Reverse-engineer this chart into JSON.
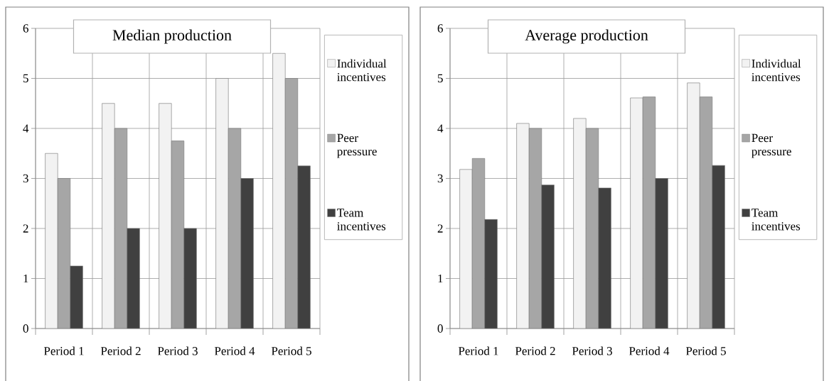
{
  "chart_data": [
    {
      "type": "bar",
      "title": "Median production",
      "categories": [
        "Period 1",
        "Period 2",
        "Period 3",
        "Period 4",
        "Period 5"
      ],
      "series": [
        {
          "name": "Individual incentives",
          "color": "#f2f2f2",
          "values": [
            3.5,
            4.5,
            4.5,
            5,
            5.5
          ]
        },
        {
          "name": "Peer pressure",
          "color": "#a6a6a6",
          "values": [
            3,
            4,
            3.75,
            4,
            5
          ]
        },
        {
          "name": "Team incentives",
          "color": "#404040",
          "values": [
            1.25,
            2,
            2,
            3,
            3.25
          ]
        }
      ],
      "ylim": [
        0,
        6
      ],
      "yticks": [
        0,
        1,
        2,
        3,
        4,
        5,
        6
      ],
      "grid": true,
      "legend": "right"
    },
    {
      "type": "bar",
      "title": "Average production",
      "categories": [
        "Period 1",
        "Period 2",
        "Period 3",
        "Period 4",
        "Period 5"
      ],
      "series": [
        {
          "name": "Individual incentives",
          "color": "#f2f2f2",
          "values": [
            3.18,
            4.1,
            4.2,
            4.61,
            4.91
          ]
        },
        {
          "name": "Peer pressure",
          "color": "#a6a6a6",
          "values": [
            3.4,
            4.0,
            4.0,
            4.63,
            4.63
          ]
        },
        {
          "name": "Team incentives",
          "color": "#404040",
          "values": [
            2.18,
            2.87,
            2.81,
            3.0,
            3.26
          ]
        }
      ],
      "ylim": [
        0,
        6
      ],
      "yticks": [
        0,
        1,
        2,
        3,
        4,
        5,
        6
      ],
      "grid": true,
      "legend": "right"
    }
  ]
}
